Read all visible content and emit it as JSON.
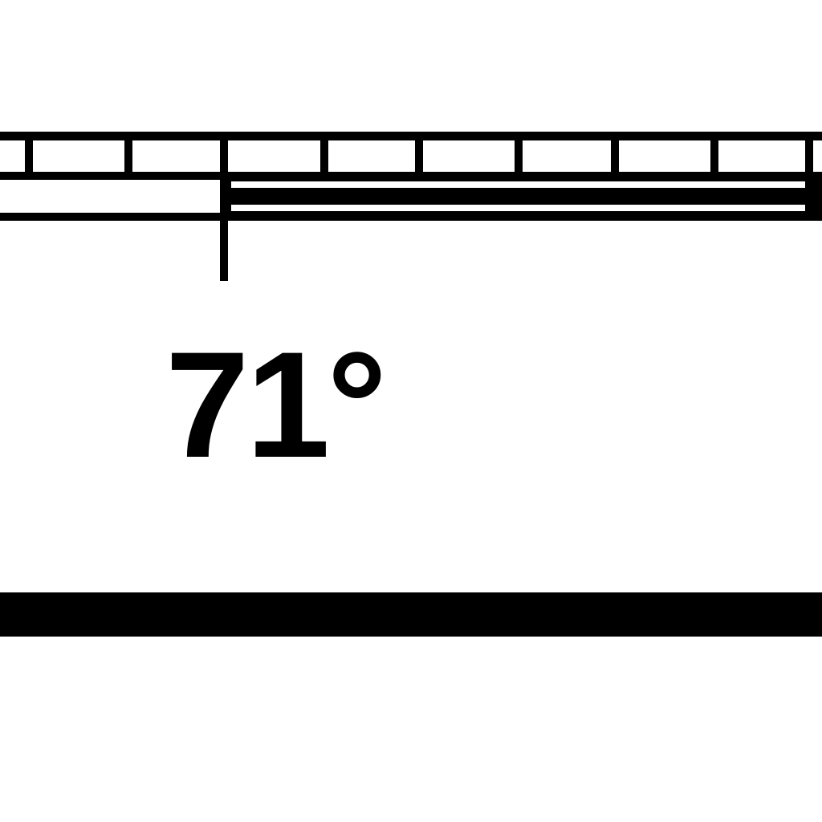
{
  "screen": {
    "background_color": "#ffffff",
    "foreground_color": "#000000"
  },
  "scale": {
    "tick_count": 9,
    "indicator": {
      "icon": "thermometer-scale-indicator"
    }
  },
  "temperature": {
    "value_text": "71°"
  },
  "bottom_bar": {
    "icon": "solid-bar"
  }
}
